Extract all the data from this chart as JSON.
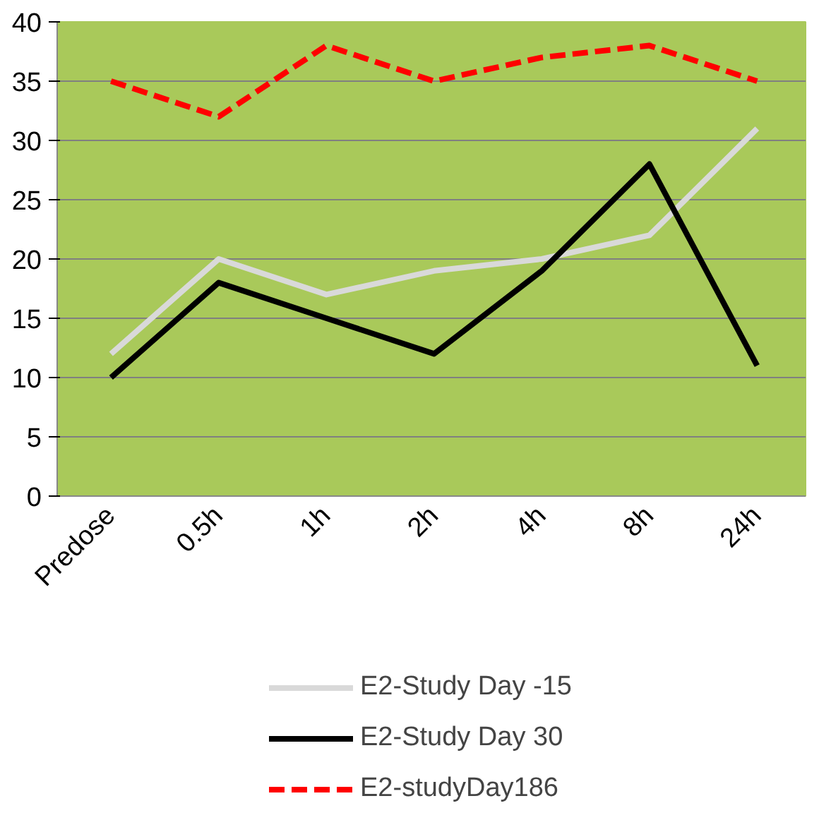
{
  "chart_data": {
    "type": "line",
    "categories": [
      "Predose",
      "0.5h",
      "1h",
      "2h",
      "4h",
      "8h",
      "24h"
    ],
    "ylim": [
      0,
      40
    ],
    "yticks": [
      0,
      5,
      10,
      15,
      20,
      25,
      30,
      35,
      40
    ],
    "grid": "y",
    "legend": "bottom",
    "marker": "none",
    "series": [
      {
        "name": "E2-Study Day -15",
        "color": "#d9d9d9",
        "line_style": "solid",
        "values": [
          12,
          20,
          17,
          19,
          20,
          22,
          31
        ]
      },
      {
        "name": "E2-Study Day 30",
        "color": "#000000",
        "line_style": "solid",
        "values": [
          10,
          18,
          15,
          12,
          19,
          28,
          11
        ]
      },
      {
        "name": "E2-studyDay186",
        "color": "#ff0000",
        "line_style": "dashed",
        "values": [
          35,
          32,
          38,
          35,
          37,
          38,
          35
        ]
      }
    ]
  }
}
